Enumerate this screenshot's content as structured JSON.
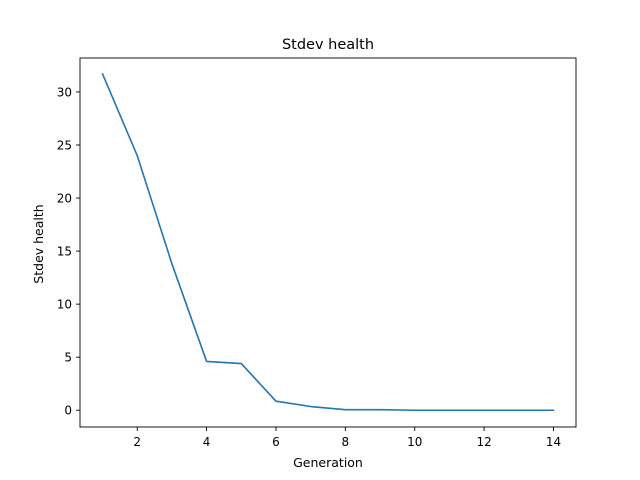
{
  "chart_data": {
    "type": "line",
    "title": "Stdev health",
    "xlabel": "Generation",
    "ylabel": "Stdev health",
    "xlim": [
      0.35,
      14.65
    ],
    "ylim": [
      -1.58,
      33.2
    ],
    "xticks": [
      2,
      4,
      6,
      8,
      10,
      12,
      14
    ],
    "yticks": [
      0,
      5,
      10,
      15,
      20,
      25,
      30
    ],
    "grid": false,
    "series": [
      {
        "color": "#1f77b4",
        "x": [
          1,
          2,
          3,
          4,
          5,
          6,
          7,
          8,
          9,
          10,
          11,
          12,
          13,
          14
        ],
        "y": [
          31.7,
          24.0,
          13.8,
          4.6,
          4.4,
          0.85,
          0.35,
          0.05,
          0.05,
          0.0,
          0.0,
          0.0,
          0.0,
          0.0
        ]
      }
    ]
  }
}
